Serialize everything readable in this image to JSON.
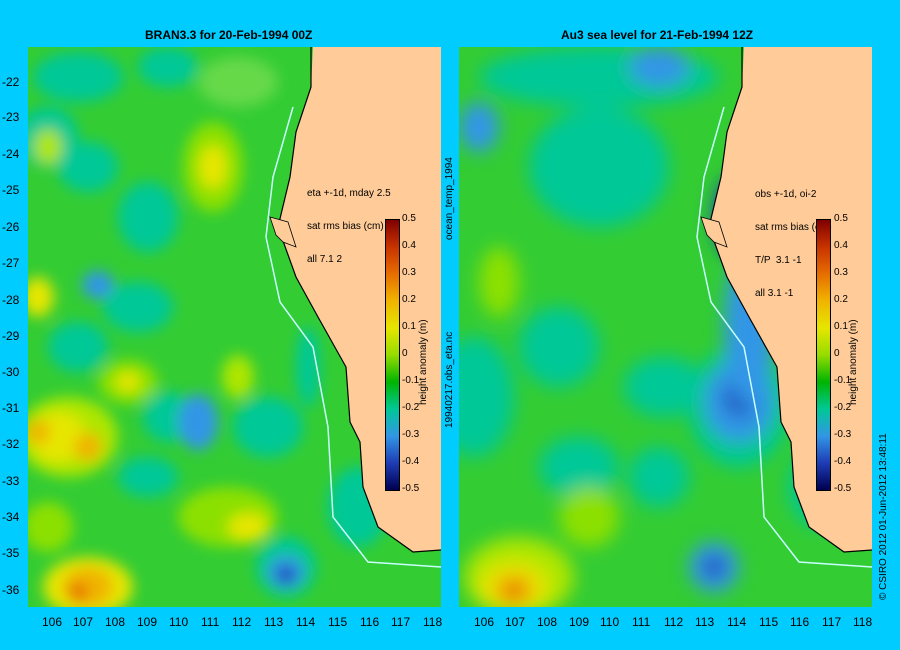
{
  "left": {
    "title": "BRAN3.3  for 20-Feb-1994 00Z",
    "note": [
      "eta +-1d, mday 2.5",
      "sat rms bias (cm)",
      "all 7.1 2"
    ]
  },
  "right": {
    "title": "Au3 sea level  for 21-Feb-1994 12Z",
    "note": [
      "obs +-1d, oi-2",
      "sat rms bias (cm)",
      "T/P  3.1 -1",
      "all 3.1 -1"
    ]
  },
  "colorbar": {
    "label": "height anomaly (m)",
    "ticks": [
      "0.5",
      "0.4",
      "0.3",
      "0.2",
      "0.1",
      "0",
      "-0.1",
      "-0.2",
      "-0.3",
      "-0.4",
      "-0.5"
    ],
    "colors": [
      "#800000",
      "#c83200",
      "#e66e00",
      "#f0b400",
      "#e6e600",
      "#96dc00",
      "#00b400",
      "#00c896",
      "#3296e6",
      "#1e3cb4",
      "#000050"
    ]
  },
  "side_labels": {
    "file1": "ocean_temp_1994",
    "file2": "19940217.obs_eta.nc",
    "credit": "© CSIRO 2012   01-Jun-2012 13:48:11"
  },
  "axes": {
    "lat_ticks": [
      "-22",
      "-23",
      "-24",
      "-25",
      "-26",
      "-27",
      "-28",
      "-29",
      "-30",
      "-31",
      "-32",
      "-33",
      "-34",
      "-35",
      "-36"
    ],
    "lon_ticks": [
      "106",
      "107",
      "108",
      "109",
      "110",
      "111",
      "112",
      "113",
      "114",
      "115",
      "116",
      "117",
      "118"
    ]
  },
  "map_colors": {
    "land": "#ffcc99",
    "field": "#33cc33",
    "coast_line": "#000000",
    "shelf_line": "#c8ffff"
  }
}
